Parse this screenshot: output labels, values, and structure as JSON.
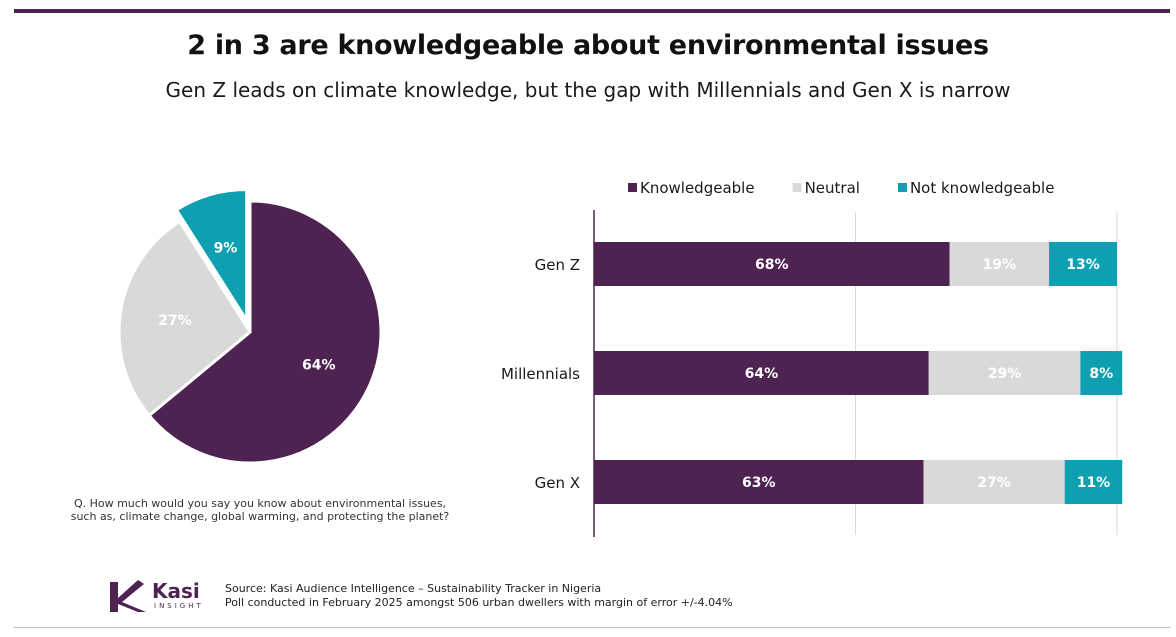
{
  "title": "2 in 3 are knowledgeable about environmental issues",
  "subtitle": "Gen Z leads on climate knowledge, but the gap with Millennials and Gen X is narrow",
  "question": "Q. How much would you say you know about environmental issues, such as, climate change, global warming, and protecting the planet?",
  "source_line1": "Source: Kasi Audience Intelligence – Sustainability Tracker in Nigeria",
  "source_line2": "Poll conducted in February 2025 amongst 506 urban dwellers with margin of error +/-4.04%",
  "logo": {
    "name": "Kasi",
    "tagline": "INSIGHT"
  },
  "colors": {
    "knowledgeable": "#4e2352",
    "neutral": "#d9d9d9",
    "not_knowledgeable": "#0e9fb0",
    "brand": "#4e2352"
  },
  "chart_data": [
    {
      "type": "pie",
      "title": "",
      "categories": [
        "Knowledgeable",
        "Neutral",
        "Not knowledgeable"
      ],
      "values": [
        64,
        27,
        9
      ],
      "labels": [
        "64%",
        "27%",
        "9%"
      ],
      "exploded": "Not knowledgeable"
    },
    {
      "type": "bar",
      "orientation": "horizontal",
      "stacked": true,
      "categories": [
        "Gen Z",
        "Millennials",
        "Gen X"
      ],
      "series": [
        {
          "name": "Knowledgeable",
          "values": [
            68,
            64,
            63
          ],
          "labels": [
            "68%",
            "64%",
            "63%"
          ]
        },
        {
          "name": "Neutral",
          "values": [
            19,
            29,
            27
          ],
          "labels": [
            "19%",
            "29%",
            "27%"
          ]
        },
        {
          "name": "Not knowledgeable",
          "values": [
            13,
            8,
            11
          ],
          "labels": [
            "13%",
            "8%",
            "11%"
          ]
        }
      ],
      "xlim": [
        0,
        100
      ],
      "legend": "top"
    }
  ]
}
